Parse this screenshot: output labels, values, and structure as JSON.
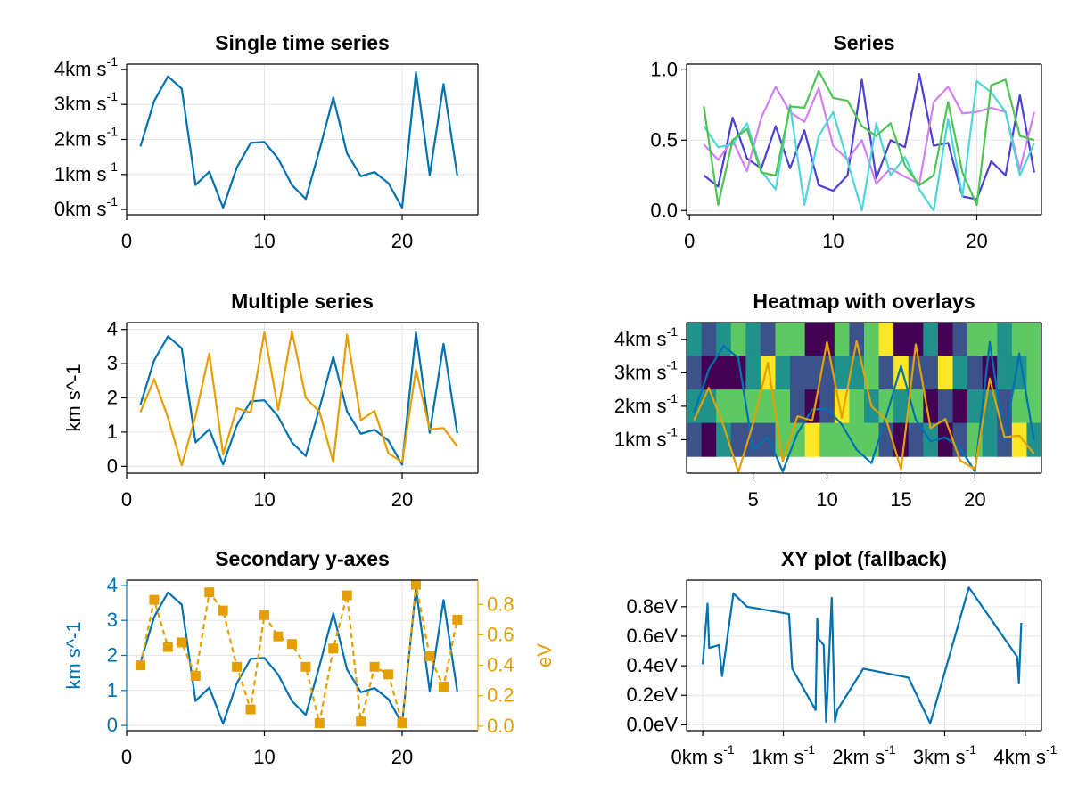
{
  "figure": {
    "colors": {
      "blue": "#0072B2",
      "orange": "#E69F00",
      "grid": "#e6e6e6",
      "frame": "#000000",
      "series": [
        "#4a3fd6",
        "#d27ef5",
        "#4dd6d6",
        "#4cc552"
      ],
      "viridis": [
        "#440154",
        "#3b528b",
        "#21918c",
        "#5ec962",
        "#fde725"
      ]
    }
  },
  "chart_data": [
    {
      "id": "single",
      "type": "line",
      "title": "Single time series",
      "x": [
        1,
        2,
        3,
        4,
        5,
        6,
        7,
        8,
        9,
        10,
        11,
        12,
        13,
        14,
        15,
        16,
        17,
        18,
        19,
        20,
        21,
        22,
        23,
        24
      ],
      "series": [
        {
          "color": "blue",
          "values": [
            1.8,
            3.1,
            3.8,
            3.45,
            0.7,
            1.08,
            0.05,
            1.2,
            1.9,
            1.93,
            1.45,
            0.7,
            0.3,
            1.7,
            3.2,
            1.6,
            0.95,
            1.07,
            0.75,
            0.05,
            3.92,
            0.98,
            3.58,
            0.97
          ]
        }
      ],
      "xlim": [
        0,
        25.5
      ],
      "ylim": [
        -0.15,
        4.15
      ],
      "xticks": [
        0,
        10,
        20
      ],
      "yticks": [
        {
          "v": 0,
          "label": "0km s",
          "sup": "-1"
        },
        {
          "v": 1,
          "label": "1km s",
          "sup": "-1"
        },
        {
          "v": 2,
          "label": "2km s",
          "sup": "-1"
        },
        {
          "v": 3,
          "label": "3km s",
          "sup": "-1"
        },
        {
          "v": 4,
          "label": "4km s",
          "sup": "-1"
        }
      ]
    },
    {
      "id": "series",
      "type": "line",
      "title": "Series",
      "x": [
        1,
        2,
        3,
        4,
        5,
        6,
        7,
        8,
        9,
        10,
        11,
        12,
        13,
        14,
        15,
        16,
        17,
        18,
        19,
        20,
        21,
        22,
        23,
        24
      ],
      "series": [
        {
          "color": "series.0",
          "values": [
            0.25,
            0.17,
            0.66,
            0.37,
            0.3,
            0.6,
            0.3,
            0.57,
            0.18,
            0.14,
            0.25,
            0.93,
            0.23,
            0.5,
            0.45,
            0.97,
            0.46,
            0.48,
            0.1,
            0.08,
            0.35,
            0.25,
            0.82,
            0.27
          ]
        },
        {
          "color": "series.1",
          "values": [
            0.47,
            0.36,
            0.5,
            0.28,
            0.66,
            0.88,
            0.7,
            0.63,
            0.87,
            0.46,
            0.36,
            0.5,
            0.19,
            0.3,
            0.24,
            0.19,
            0.77,
            0.88,
            0.69,
            0.7,
            0.73,
            0.7,
            0.29,
            0.7
          ]
        },
        {
          "color": "series.2",
          "values": [
            0.6,
            0.45,
            0.47,
            0.62,
            0.28,
            0.15,
            0.75,
            0.04,
            0.53,
            0.7,
            0.35,
            0.0,
            0.62,
            0.25,
            0.38,
            0.15,
            0.0,
            0.65,
            0.1,
            0.92,
            0.84,
            0.7,
            0.25,
            0.48
          ]
        },
        {
          "color": "series.3",
          "values": [
            0.74,
            0.04,
            0.5,
            0.58,
            0.27,
            0.25,
            0.74,
            0.73,
            0.99,
            0.8,
            0.78,
            0.6,
            0.53,
            0.62,
            0.32,
            0.18,
            0.25,
            0.77,
            0.27,
            0.04,
            0.89,
            0.93,
            0.53,
            0.5
          ]
        }
      ],
      "xlim": [
        -0.2,
        24.5
      ],
      "ylim": [
        -0.03,
        1.04
      ],
      "xticks": [
        0,
        10,
        20
      ],
      "yticks": [
        {
          "v": 0,
          "label": "0.0"
        },
        {
          "v": 0.5,
          "label": "0.5"
        },
        {
          "v": 1,
          "label": "1.0"
        }
      ]
    },
    {
      "id": "multiple",
      "type": "line",
      "title": "Multiple series",
      "ylabel": "km s^-1",
      "x": [
        1,
        2,
        3,
        4,
        5,
        6,
        7,
        8,
        9,
        10,
        11,
        12,
        13,
        14,
        15,
        16,
        17,
        18,
        19,
        20,
        21,
        22,
        23,
        24
      ],
      "series": [
        {
          "color": "blue",
          "values": [
            1.8,
            3.1,
            3.8,
            3.45,
            0.7,
            1.08,
            0.05,
            1.2,
            1.9,
            1.93,
            1.45,
            0.7,
            0.3,
            1.7,
            3.2,
            1.6,
            0.95,
            1.07,
            0.75,
            0.05,
            3.92,
            0.98,
            3.58,
            0.97
          ]
        },
        {
          "color": "orange",
          "values": [
            1.58,
            2.55,
            1.42,
            0.03,
            1.48,
            3.3,
            0.35,
            1.7,
            1.57,
            3.92,
            1.65,
            3.95,
            2.0,
            1.6,
            0.12,
            3.85,
            1.35,
            1.62,
            0.38,
            0.12,
            2.83,
            1.08,
            1.12,
            0.58
          ]
        }
      ],
      "xlim": [
        0,
        25.5
      ],
      "ylim": [
        -0.2,
        4.2
      ],
      "xticks": [
        0,
        10,
        20
      ],
      "yticks": [
        {
          "v": 0,
          "label": "0"
        },
        {
          "v": 1,
          "label": "1"
        },
        {
          "v": 2,
          "label": "2"
        },
        {
          "v": 3,
          "label": "3"
        },
        {
          "v": 4,
          "label": "4"
        }
      ]
    },
    {
      "id": "heatmap",
      "type": "heatmap",
      "title": "Heatmap with overlays",
      "heatmap_rows": [
        [
          2,
          1,
          2,
          3,
          2,
          1,
          3,
          3,
          0,
          0,
          3,
          1,
          3,
          4,
          0,
          0,
          2,
          0,
          1,
          3,
          3,
          2,
          3,
          3
        ],
        [
          1,
          0,
          0,
          0,
          2,
          4,
          2,
          1,
          1,
          1,
          2,
          2,
          3,
          1,
          4,
          1,
          1,
          4,
          2,
          1,
          0,
          2,
          2,
          3
        ],
        [
          2,
          2,
          3,
          3,
          3,
          3,
          3,
          1,
          0,
          1,
          4,
          3,
          2,
          3,
          2,
          3,
          0,
          1,
          0,
          2,
          2,
          1,
          3,
          3
        ],
        [
          1,
          0,
          2,
          1,
          1,
          1,
          3,
          3,
          4,
          3,
          3,
          3,
          3,
          1,
          0,
          1,
          2,
          0,
          1,
          3,
          2,
          1,
          4,
          2
        ]
      ],
      "x": [
        1,
        2,
        3,
        4,
        5,
        6,
        7,
        8,
        9,
        10,
        11,
        12,
        13,
        14,
        15,
        16,
        17,
        18,
        19,
        20,
        21,
        22,
        23,
        24
      ],
      "series": [
        {
          "color": "blue",
          "values": [
            1.8,
            3.1,
            3.8,
            3.45,
            0.7,
            1.08,
            0.05,
            1.2,
            1.9,
            1.93,
            1.45,
            0.7,
            0.3,
            1.7,
            3.2,
            1.6,
            0.95,
            1.07,
            0.75,
            0.05,
            3.92,
            0.98,
            3.58,
            0.97
          ]
        },
        {
          "color": "orange",
          "values": [
            1.58,
            2.55,
            1.42,
            0.03,
            1.48,
            3.3,
            0.35,
            1.7,
            1.57,
            3.92,
            1.65,
            3.95,
            2.0,
            1.6,
            0.12,
            3.85,
            1.35,
            1.62,
            0.38,
            0.12,
            2.83,
            1.08,
            1.12,
            0.58
          ]
        }
      ],
      "xlim": [
        0.5,
        24.5
      ],
      "ylim": [
        0,
        4.5
      ],
      "xticks": [
        5,
        10,
        15,
        20
      ],
      "yticks": [
        {
          "v": 1,
          "label": "1km s",
          "sup": "-1"
        },
        {
          "v": 2,
          "label": "2km s",
          "sup": "-1"
        },
        {
          "v": 3,
          "label": "3km s",
          "sup": "-1"
        },
        {
          "v": 4,
          "label": "4km s",
          "sup": "-1"
        }
      ]
    },
    {
      "id": "secondary",
      "type": "line",
      "title": "Secondary y-axes",
      "ylabel": "km s^-1",
      "ylabel_right": "eV",
      "x": [
        1,
        2,
        3,
        4,
        5,
        6,
        7,
        8,
        9,
        10,
        11,
        12,
        13,
        14,
        15,
        16,
        17,
        18,
        19,
        20,
        21,
        22,
        23,
        24
      ],
      "series": [
        {
          "color": "blue",
          "axis": "left",
          "values": [
            1.8,
            3.1,
            3.8,
            3.45,
            0.7,
            1.08,
            0.05,
            1.2,
            1.9,
            1.93,
            1.45,
            0.7,
            0.3,
            1.7,
            3.2,
            1.6,
            0.95,
            1.07,
            0.75,
            0.05,
            3.92,
            0.98,
            3.58,
            0.97
          ]
        },
        {
          "color": "orange",
          "axis": "right",
          "dashed": true,
          "markers": "square",
          "values": [
            0.4,
            0.83,
            0.52,
            0.55,
            0.33,
            0.88,
            0.76,
            0.39,
            0.11,
            0.73,
            0.59,
            0.54,
            0.39,
            0.02,
            0.51,
            0.86,
            0.03,
            0.39,
            0.34,
            0.02,
            0.93,
            0.46,
            0.26,
            0.7
          ]
        }
      ],
      "xlim": [
        0,
        25.5
      ],
      "ylim": [
        -0.15,
        4.15
      ],
      "ylim_right": [
        -0.03,
        0.96
      ],
      "xticks": [
        0,
        10,
        20
      ],
      "yticks": [
        {
          "v": 0,
          "label": "0"
        },
        {
          "v": 1,
          "label": "1"
        },
        {
          "v": 2,
          "label": "2"
        },
        {
          "v": 3,
          "label": "3"
        },
        {
          "v": 4,
          "label": "4"
        }
      ],
      "yticks_right": [
        {
          "v": 0.0,
          "label": "0.0"
        },
        {
          "v": 0.2,
          "label": "0.2"
        },
        {
          "v": 0.4,
          "label": "0.4"
        },
        {
          "v": 0.6,
          "label": "0.6"
        },
        {
          "v": 0.8,
          "label": "0.8"
        }
      ]
    },
    {
      "id": "xy",
      "type": "line",
      "title": "XY plot (fallback)",
      "x": [
        0.0,
        0.06,
        0.08,
        0.2,
        0.24,
        0.38,
        0.55,
        1.07,
        1.11,
        1.4,
        1.42,
        1.44,
        1.5,
        1.53,
        1.6,
        1.64,
        1.67,
        1.99,
        2.55,
        2.82,
        3.3,
        3.9,
        3.92,
        3.95
      ],
      "series": [
        {
          "color": "blue",
          "values": [
            0.41,
            0.82,
            0.52,
            0.54,
            0.33,
            0.89,
            0.8,
            0.75,
            0.38,
            0.1,
            0.72,
            0.58,
            0.54,
            0.02,
            0.86,
            0.02,
            0.1,
            0.38,
            0.32,
            0.01,
            0.93,
            0.46,
            0.28,
            0.69
          ]
        }
      ],
      "xlim": [
        -0.2,
        4.2
      ],
      "ylim": [
        -0.04,
        0.98
      ],
      "xticks": [
        {
          "v": 0,
          "label": "0km s",
          "sup": "-1"
        },
        {
          "v": 1,
          "label": "1km s",
          "sup": "-1"
        },
        {
          "v": 2,
          "label": "2km s",
          "sup": "-1"
        },
        {
          "v": 3,
          "label": "3km s",
          "sup": "-1"
        },
        {
          "v": 4,
          "label": "4km s",
          "sup": "-1"
        }
      ],
      "yticks": [
        {
          "v": 0.0,
          "label": "0.0eV"
        },
        {
          "v": 0.2,
          "label": "0.2eV"
        },
        {
          "v": 0.4,
          "label": "0.4eV"
        },
        {
          "v": 0.6,
          "label": "0.6eV"
        },
        {
          "v": 0.8,
          "label": "0.8eV"
        }
      ]
    }
  ]
}
